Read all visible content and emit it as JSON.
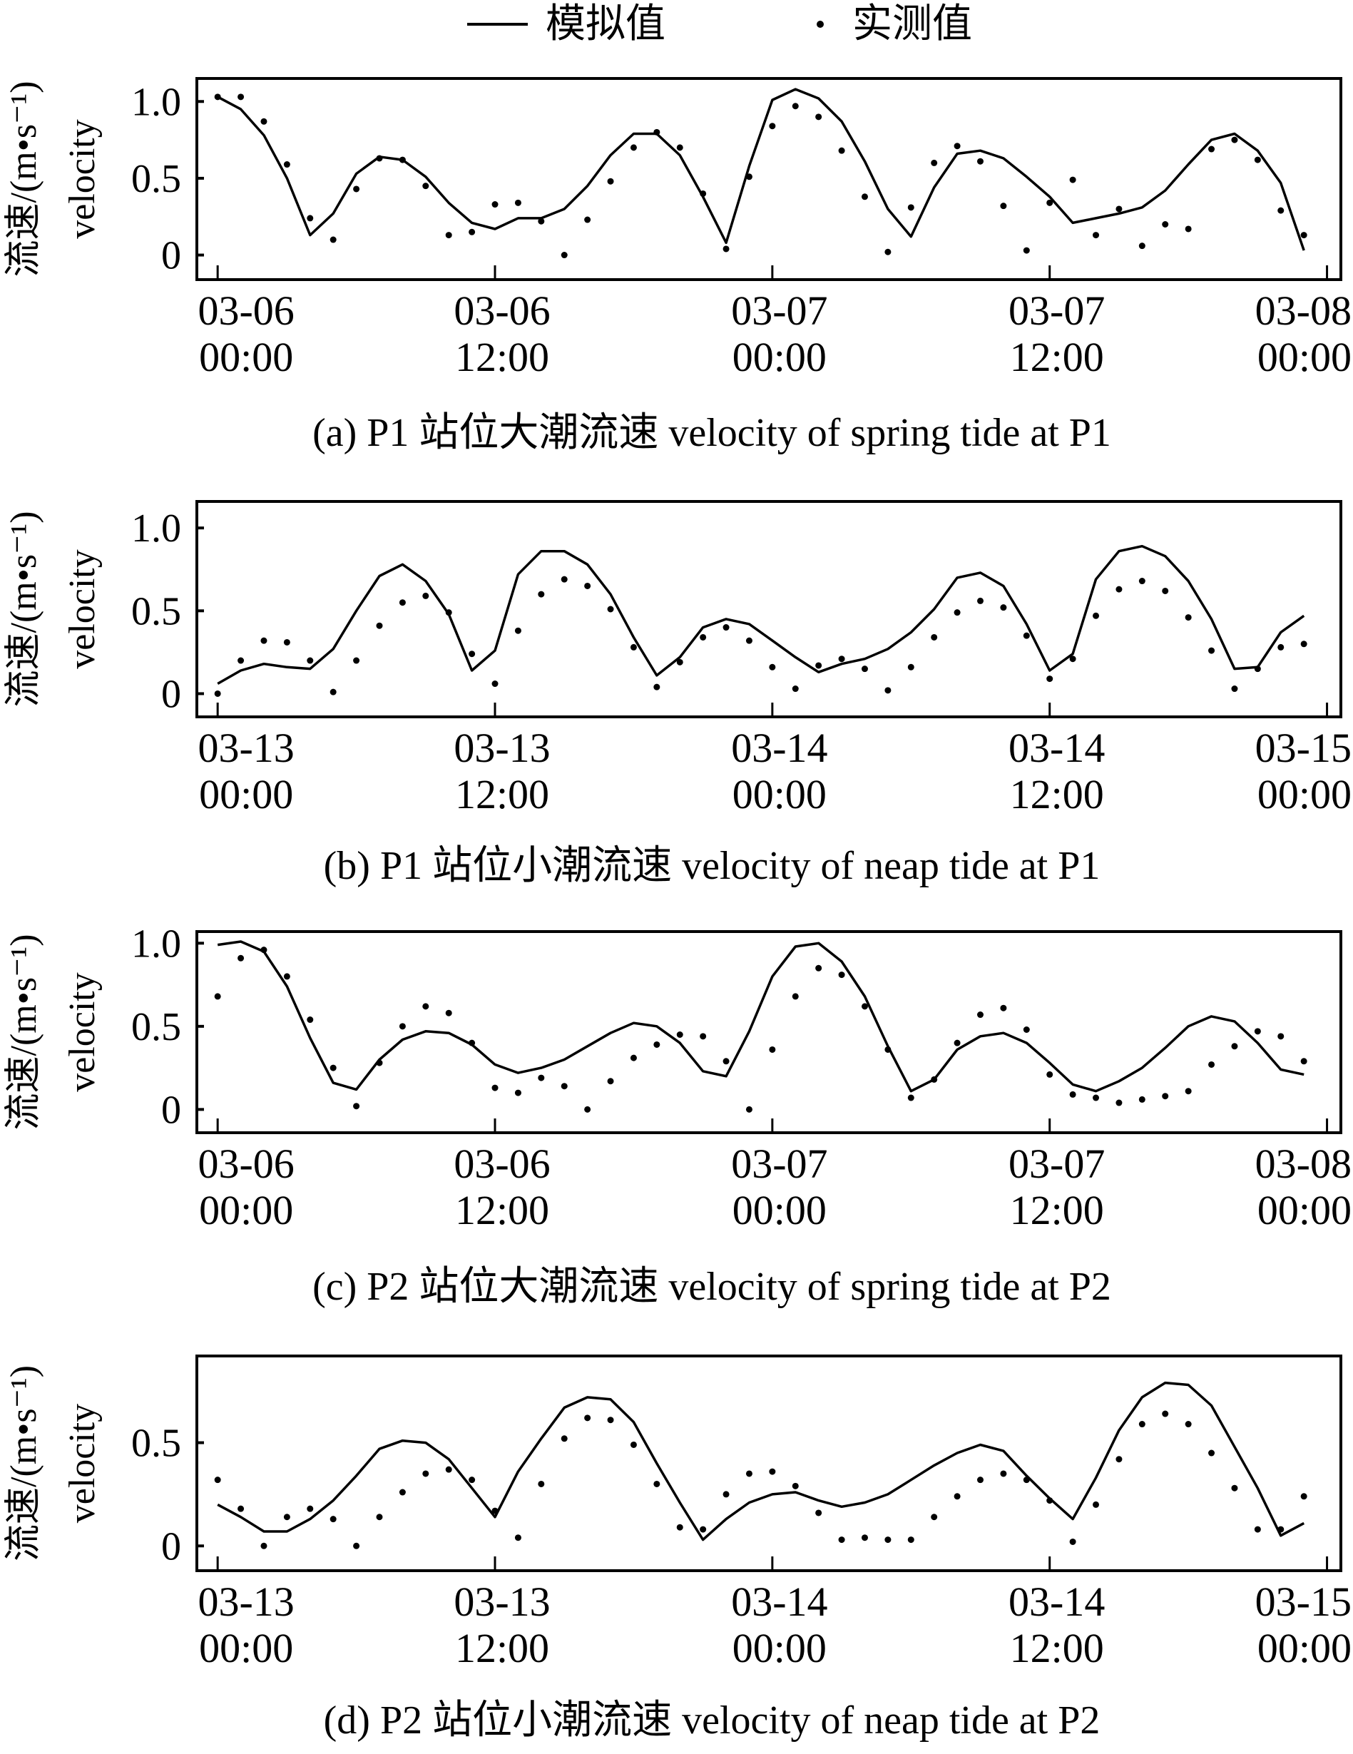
{
  "legend": {
    "simulated": "模拟值",
    "measured": "实测值"
  },
  "chart_data": [
    {
      "type": "line",
      "caption": "(a) P1 站位大潮流速 velocity of spring tide at P1",
      "ylabel_cn": "流速/(m•s⁻¹)",
      "ylabel_en": "velocity",
      "yticks": [
        0,
        0.5,
        1.0
      ],
      "ytick_labels": [
        "0",
        "0.5",
        "1.0"
      ],
      "ylim": [
        -0.16,
        1.15
      ],
      "xlim_hours": [
        -0.9,
        48.6
      ],
      "xticks_hours": [
        0,
        12,
        24,
        36,
        48
      ],
      "xtick_labels": [
        [
          "03-06",
          "00:00"
        ],
        [
          "03-06",
          "12:00"
        ],
        [
          "03-07",
          "00:00"
        ],
        [
          "03-07",
          "12:00"
        ],
        [
          "03-08",
          "00:00"
        ]
      ],
      "series": [
        {
          "name": "模拟值",
          "style": "line",
          "values": [
            1.03,
            0.95,
            0.78,
            0.5,
            0.13,
            0.27,
            0.53,
            0.64,
            0.62,
            0.51,
            0.34,
            0.21,
            0.17,
            0.24,
            0.24,
            0.3,
            0.45,
            0.65,
            0.79,
            0.79,
            0.65,
            0.38,
            0.08,
            0.58,
            1.01,
            1.08,
            1.02,
            0.87,
            0.61,
            0.3,
            0.12,
            0.44,
            0.66,
            0.68,
            0.63,
            0.51,
            0.38,
            0.21,
            0.24,
            0.27,
            0.31,
            0.42,
            0.59,
            0.75,
            0.79,
            0.68,
            0.47,
            0.03
          ]
        },
        {
          "name": "实测值",
          "style": "dot",
          "values": [
            1.03,
            1.03,
            0.87,
            0.59,
            0.24,
            0.1,
            0.43,
            0.63,
            0.62,
            0.45,
            0.13,
            0.15,
            0.33,
            0.34,
            0.22,
            0.0,
            0.23,
            0.48,
            0.7,
            0.8,
            0.7,
            0.4,
            0.04,
            0.51,
            0.84,
            0.97,
            0.9,
            0.68,
            0.38,
            0.02,
            0.31,
            0.6,
            0.71,
            0.61,
            0.32,
            0.03,
            0.34,
            0.49,
            0.13,
            0.3,
            0.06,
            0.2,
            0.17,
            0.69,
            0.75,
            0.62,
            0.29,
            0.13
          ]
        }
      ]
    },
    {
      "type": "line",
      "caption": "(b) P1 站位小潮流速 velocity of neap tide at P1",
      "ylabel_cn": "流速/(m•s⁻¹)",
      "ylabel_en": "velocity",
      "yticks": [
        0,
        0.5,
        1.0
      ],
      "ytick_labels": [
        "0",
        "0.5",
        "1.0"
      ],
      "ylim": [
        -0.14,
        1.16
      ],
      "xlim_hours": [
        -0.9,
        48.6
      ],
      "xticks_hours": [
        0,
        12,
        24,
        36,
        48
      ],
      "xtick_labels": [
        [
          "03-13",
          "00:00"
        ],
        [
          "03-13",
          "12:00"
        ],
        [
          "03-14",
          "00:00"
        ],
        [
          "03-14",
          "12:00"
        ],
        [
          "03-15",
          "00:00"
        ]
      ],
      "series": [
        {
          "name": "模拟值",
          "style": "line",
          "values": [
            0.06,
            0.14,
            0.18,
            0.16,
            0.15,
            0.27,
            0.5,
            0.71,
            0.78,
            0.68,
            0.48,
            0.14,
            0.26,
            0.72,
            0.86,
            0.86,
            0.78,
            0.6,
            0.34,
            0.11,
            0.22,
            0.4,
            0.45,
            0.42,
            0.32,
            0.22,
            0.13,
            0.18,
            0.21,
            0.27,
            0.37,
            0.51,
            0.7,
            0.73,
            0.65,
            0.42,
            0.14,
            0.24,
            0.69,
            0.86,
            0.89,
            0.83,
            0.68,
            0.45,
            0.15,
            0.16,
            0.37,
            0.47
          ]
        },
        {
          "name": "实测值",
          "style": "dot",
          "values": [
            0.0,
            0.2,
            0.32,
            0.31,
            0.2,
            0.01,
            0.2,
            0.41,
            0.55,
            0.59,
            0.49,
            0.24,
            0.06,
            0.38,
            0.6,
            0.69,
            0.65,
            0.51,
            0.28,
            0.04,
            0.19,
            0.34,
            0.4,
            0.32,
            0.16,
            0.03,
            0.17,
            0.21,
            0.15,
            0.02,
            0.16,
            0.34,
            0.49,
            0.56,
            0.52,
            0.35,
            0.09,
            0.21,
            0.47,
            0.63,
            0.68,
            0.62,
            0.46,
            0.26,
            0.03,
            0.15,
            0.28,
            0.3
          ]
        }
      ]
    },
    {
      "type": "line",
      "caption": "(c) P2 站位大潮流速 velocity of spring tide at P2",
      "ylabel_cn": "流速/(m•s⁻¹)",
      "ylabel_en": "velocity",
      "yticks": [
        0,
        0.5,
        1.0
      ],
      "ytick_labels": [
        "0",
        "0.5",
        "1.0"
      ],
      "ylim": [
        -0.14,
        1.07
      ],
      "xlim_hours": [
        -0.9,
        48.6
      ],
      "xticks_hours": [
        0,
        12,
        24,
        36,
        48
      ],
      "xtick_labels": [
        [
          "03-06",
          "00:00"
        ],
        [
          "03-06",
          "12:00"
        ],
        [
          "03-07",
          "00:00"
        ],
        [
          "03-07",
          "12:00"
        ],
        [
          "03-08",
          "00:00"
        ]
      ],
      "series": [
        {
          "name": "模拟值",
          "style": "line",
          "values": [
            0.99,
            1.01,
            0.95,
            0.74,
            0.43,
            0.16,
            0.12,
            0.3,
            0.42,
            0.47,
            0.46,
            0.39,
            0.27,
            0.22,
            0.25,
            0.3,
            0.38,
            0.46,
            0.52,
            0.5,
            0.4,
            0.23,
            0.2,
            0.47,
            0.8,
            0.98,
            1.0,
            0.89,
            0.68,
            0.38,
            0.11,
            0.18,
            0.36,
            0.44,
            0.46,
            0.4,
            0.28,
            0.15,
            0.11,
            0.17,
            0.25,
            0.37,
            0.5,
            0.56,
            0.53,
            0.4,
            0.24,
            0.21
          ]
        },
        {
          "name": "实测值",
          "style": "dot",
          "values": [
            0.68,
            0.91,
            0.96,
            0.8,
            0.54,
            0.25,
            0.02,
            0.28,
            0.5,
            0.62,
            0.58,
            0.4,
            0.13,
            0.1,
            0.19,
            0.14,
            0.0,
            0.17,
            0.31,
            0.39,
            0.45,
            0.44,
            0.29,
            0.0,
            0.36,
            0.68,
            0.85,
            0.81,
            0.62,
            0.36,
            0.07,
            0.18,
            0.4,
            0.57,
            0.61,
            0.48,
            0.21,
            0.09,
            0.07,
            0.04,
            0.06,
            0.08,
            0.11,
            0.27,
            0.38,
            0.47,
            0.44,
            0.29
          ]
        }
      ]
    },
    {
      "type": "line",
      "caption": "(d) P2 站位小潮流速 velocity of neap tide at P2",
      "ylabel_cn": "流速/(m•s⁻¹)",
      "ylabel_en": "velocity",
      "yticks": [
        0,
        0.5
      ],
      "ytick_labels": [
        "0",
        "0.5"
      ],
      "ylim": [
        -0.12,
        0.92
      ],
      "xlim_hours": [
        -0.9,
        48.6
      ],
      "xticks_hours": [
        0,
        12,
        24,
        36,
        48
      ],
      "xtick_labels": [
        [
          "03-13",
          "00:00"
        ],
        [
          "03-13",
          "12:00"
        ],
        [
          "03-14",
          "00:00"
        ],
        [
          "03-14",
          "12:00"
        ],
        [
          "03-15",
          "00:00"
        ]
      ],
      "series": [
        {
          "name": "模拟值",
          "style": "line",
          "values": [
            0.2,
            0.14,
            0.07,
            0.07,
            0.13,
            0.22,
            0.34,
            0.47,
            0.51,
            0.5,
            0.42,
            0.28,
            0.14,
            0.36,
            0.52,
            0.67,
            0.72,
            0.71,
            0.6,
            0.4,
            0.21,
            0.03,
            0.13,
            0.21,
            0.25,
            0.26,
            0.22,
            0.19,
            0.21,
            0.25,
            0.32,
            0.39,
            0.45,
            0.49,
            0.46,
            0.34,
            0.23,
            0.13,
            0.33,
            0.56,
            0.72,
            0.79,
            0.78,
            0.68,
            0.48,
            0.28,
            0.05,
            0.11
          ]
        },
        {
          "name": "实测值",
          "style": "dot",
          "values": [
            0.32,
            0.18,
            0.0,
            0.14,
            0.18,
            0.13,
            0.0,
            0.14,
            0.26,
            0.35,
            0.37,
            0.32,
            0.17,
            0.04,
            0.3,
            0.52,
            0.62,
            0.61,
            0.49,
            0.3,
            0.09,
            0.08,
            0.25,
            0.35,
            0.36,
            0.29,
            0.16,
            0.03,
            0.04,
            0.03,
            0.03,
            0.14,
            0.24,
            0.32,
            0.35,
            0.32,
            0.22,
            0.02,
            0.2,
            0.42,
            0.59,
            0.64,
            0.59,
            0.45,
            0.28,
            0.08,
            0.08,
            0.24
          ]
        }
      ]
    }
  ]
}
